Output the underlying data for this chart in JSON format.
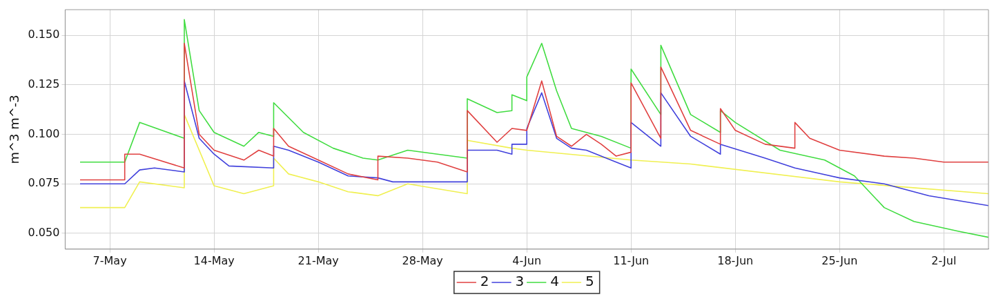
{
  "chart_data": {
    "type": "line",
    "ylabel": "m^3 m^-3",
    "grid": true,
    "legend": "bottom",
    "xlim": [
      "--05-04",
      "--07-05"
    ],
    "xticks": [
      {
        "value": "--05-07",
        "label": "7-May"
      },
      {
        "value": "--05-14",
        "label": "14-May"
      },
      {
        "value": "--05-21",
        "label": "21-May"
      },
      {
        "value": "--05-28",
        "label": "28-May"
      },
      {
        "value": "--06-04",
        "label": "4-Jun"
      },
      {
        "value": "--06-11",
        "label": "11-Jun"
      },
      {
        "value": "--06-18",
        "label": "18-Jun"
      },
      {
        "value": "--06-25",
        "label": "25-Jun"
      },
      {
        "value": "--07-02",
        "label": "2-Jul"
      }
    ],
    "ylim": [
      0.042,
      0.163
    ],
    "yticks": [
      {
        "value": 0.05,
        "label": "0.050"
      },
      {
        "value": 0.075,
        "label": "0.075"
      },
      {
        "value": 0.1,
        "label": "0.100"
      },
      {
        "value": 0.125,
        "label": "0.125"
      },
      {
        "value": 0.15,
        "label": "0.150"
      }
    ],
    "series": [
      {
        "name": "2",
        "color": "#e04040",
        "x": [
          "--05-05",
          "--05-08",
          "--05-08",
          "--05-09",
          "--05-12",
          "--05-12",
          "--05-13",
          "--05-14",
          "--05-16",
          "--05-17",
          "--05-18",
          "--05-18",
          "--05-19",
          "--05-21",
          "--05-23",
          "--05-25",
          "--05-25",
          "--05-27",
          "--05-29",
          "--05-31",
          "--05-31",
          "--06-02",
          "--06-03",
          "--06-04",
          "--06-05",
          "--06-06",
          "--06-07",
          "--06-08",
          "--06-09",
          "--06-10",
          "--06-11",
          "--06-11",
          "--06-13",
          "--06-13",
          "--06-15",
          "--06-17",
          "--06-17",
          "--06-18",
          "--06-20",
          "--06-22",
          "--06-22",
          "--06-23",
          "--06-25",
          "--06-28",
          "--06-30",
          "--07-02",
          "--07-05"
        ],
        "values": [
          0.077,
          0.077,
          0.09,
          0.09,
          0.083,
          0.146,
          0.1,
          0.092,
          0.087,
          0.092,
          0.089,
          0.103,
          0.094,
          0.087,
          0.08,
          0.077,
          0.089,
          0.088,
          0.086,
          0.081,
          0.112,
          0.096,
          0.103,
          0.102,
          0.127,
          0.099,
          0.094,
          0.1,
          0.095,
          0.089,
          0.091,
          0.126,
          0.098,
          0.134,
          0.102,
          0.095,
          0.113,
          0.102,
          0.095,
          0.093,
          0.106,
          0.098,
          0.092,
          0.089,
          0.088,
          0.086,
          0.086
        ]
      },
      {
        "name": "3",
        "color": "#4040dc",
        "x": [
          "--05-05",
          "--05-08",
          "--05-09",
          "--05-10",
          "--05-12",
          "--05-12",
          "--05-13",
          "--05-14",
          "--05-15",
          "--05-18",
          "--05-18",
          "--05-19",
          "--05-21",
          "--05-23",
          "--05-25",
          "--05-26",
          "--05-31",
          "--05-31",
          "--06-02",
          "--06-03",
          "--06-03",
          "--06-04",
          "--06-04",
          "--06-05",
          "--06-06",
          "--06-07",
          "--06-08",
          "--06-10",
          "--06-11",
          "--06-11",
          "--06-13",
          "--06-13",
          "--06-15",
          "--06-17",
          "--06-17",
          "--06-20",
          "--06-22",
          "--06-25",
          "--06-28",
          "--07-01",
          "--07-05"
        ],
        "values": [
          0.075,
          0.075,
          0.082,
          0.083,
          0.081,
          0.127,
          0.098,
          0.09,
          0.084,
          0.083,
          0.094,
          0.092,
          0.086,
          0.079,
          0.078,
          0.076,
          0.076,
          0.092,
          0.092,
          0.09,
          0.095,
          0.095,
          0.103,
          0.121,
          0.098,
          0.093,
          0.092,
          0.086,
          0.083,
          0.106,
          0.094,
          0.121,
          0.099,
          0.09,
          0.095,
          0.088,
          0.083,
          0.078,
          0.075,
          0.069,
          0.064
        ]
      },
      {
        "name": "4",
        "color": "#40dc40",
        "x": [
          "--05-05",
          "--05-08",
          "--05-09",
          "--05-12",
          "--05-12",
          "--05-13",
          "--05-14",
          "--05-16",
          "--05-17",
          "--05-18",
          "--05-18",
          "--05-20",
          "--05-22",
          "--05-24",
          "--05-25",
          "--05-27",
          "--05-31",
          "--05-31",
          "--06-02",
          "--06-03",
          "--06-03",
          "--06-04",
          "--06-04",
          "--06-05",
          "--06-06",
          "--06-07",
          "--06-09",
          "--06-11",
          "--06-11",
          "--06-13",
          "--06-13",
          "--06-15",
          "--06-17",
          "--06-17",
          "--06-18",
          "--06-21",
          "--06-24",
          "--06-25",
          "--06-26",
          "--06-28",
          "--06-30",
          "--07-03",
          "--07-05"
        ],
        "values": [
          0.086,
          0.086,
          0.106,
          0.098,
          0.158,
          0.112,
          0.101,
          0.094,
          0.101,
          0.099,
          0.116,
          0.101,
          0.093,
          0.088,
          0.087,
          0.092,
          0.088,
          0.118,
          0.111,
          0.112,
          0.12,
          0.117,
          0.129,
          0.146,
          0.122,
          0.103,
          0.099,
          0.093,
          0.133,
          0.11,
          0.145,
          0.11,
          0.101,
          0.112,
          0.106,
          0.092,
          0.087,
          0.083,
          0.079,
          0.063,
          0.056,
          0.051,
          0.048
        ]
      },
      {
        "name": "5",
        "color": "#f0f050",
        "x": [
          "--05-05",
          "--05-08",
          "--05-09",
          "--05-12",
          "--05-12",
          "--05-14",
          "--05-16",
          "--05-18",
          "--05-18",
          "--05-19",
          "--05-21",
          "--05-23",
          "--05-25",
          "--05-27",
          "--05-31",
          "--05-31",
          "--06-03",
          "--06-04",
          "--06-11",
          "--06-15",
          "--06-25",
          "--07-05"
        ],
        "values": [
          0.063,
          0.063,
          0.076,
          0.073,
          0.11,
          0.074,
          0.07,
          0.074,
          0.088,
          0.08,
          0.076,
          0.071,
          0.069,
          0.075,
          0.07,
          0.097,
          0.093,
          0.092,
          0.087,
          0.085,
          0.076,
          0.07
        ]
      }
    ]
  }
}
